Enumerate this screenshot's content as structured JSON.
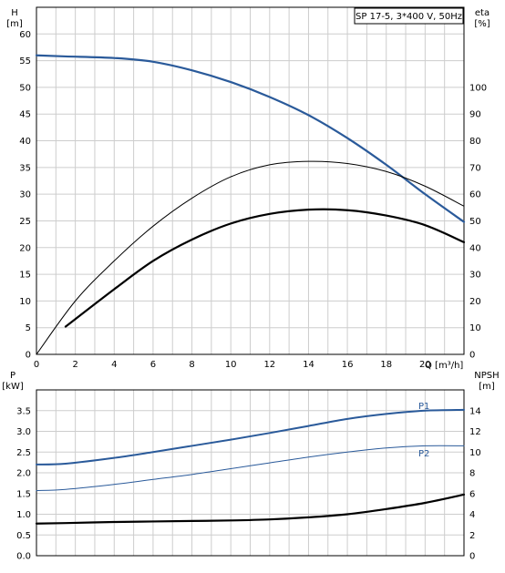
{
  "chart_data": [
    {
      "type": "line",
      "title": "SP 17-5, 3*400 V, 50Hz",
      "xlabel": "Q [m³/h]",
      "ylabel_left_name": "H",
      "ylabel_left_unit": "[m]",
      "ylabel_right_name": "eta",
      "ylabel_right_unit": "[%]",
      "xlim": [
        0,
        22
      ],
      "ylim_left": [
        0,
        65
      ],
      "ylim_right": [
        0,
        130
      ],
      "x_ticks": [
        "0",
        "2",
        "4",
        "6",
        "8",
        "10",
        "12",
        "14",
        "16",
        "18",
        "20"
      ],
      "y_left_ticks": [
        "0",
        "5",
        "10",
        "15",
        "20",
        "25",
        "30",
        "35",
        "40",
        "45",
        "50",
        "55",
        "60"
      ],
      "y_right_ticks": [
        "0",
        "10",
        "20",
        "30",
        "40",
        "50",
        "60",
        "70",
        "80",
        "90",
        "100"
      ],
      "grid": true,
      "series": [
        {
          "axis": "left",
          "color": "#2a5a9a",
          "width": 2.2,
          "x": [
            0,
            1.5,
            4,
            6,
            8,
            10,
            12,
            14,
            16,
            18,
            20,
            22
          ],
          "y": [
            56,
            55.8,
            55.5,
            54.8,
            53.2,
            51,
            48.2,
            44.8,
            40.5,
            35.5,
            30,
            24.8
          ]
        },
        {
          "axis": "right",
          "color": "#000000",
          "width": 1,
          "x": [
            0,
            2,
            4,
            6,
            8,
            10,
            12,
            14,
            16,
            18,
            20,
            22
          ],
          "y": [
            0,
            20,
            35,
            48,
            58.5,
            66.5,
            71,
            72.3,
            71.5,
            68.5,
            63,
            55.5
          ]
        },
        {
          "axis": "left",
          "color": "#000000",
          "width": 2.2,
          "x": [
            1.5,
            4,
            6,
            8,
            10,
            12,
            14,
            16,
            18,
            20,
            22
          ],
          "y": [
            5.2,
            12.2,
            17.5,
            21.5,
            24.5,
            26.3,
            27.1,
            27,
            26,
            24.2,
            21
          ]
        }
      ]
    },
    {
      "type": "line",
      "xlabel": "",
      "ylabel_left_name": "P",
      "ylabel_left_unit": "[kW]",
      "ylabel_right_name": "NPSH",
      "ylabel_right_unit": "[m]",
      "xlim": [
        0,
        22
      ],
      "ylim_left": [
        0,
        4
      ],
      "ylim_right": [
        0,
        16
      ],
      "y_left_ticks": [
        "0.0",
        "0.5",
        "1.0",
        "1.5",
        "2.0",
        "2.5",
        "3.0",
        "3.5"
      ],
      "y_right_ticks": [
        "0",
        "2",
        "4",
        "6",
        "8",
        "10",
        "12",
        "14"
      ],
      "grid": true,
      "series": [
        {
          "name": "P1",
          "axis": "left",
          "color": "#2a5a9a",
          "width": 2,
          "x": [
            0,
            1.5,
            4,
            6,
            8,
            10,
            12,
            14,
            16,
            18,
            20,
            22
          ],
          "y": [
            2.2,
            2.22,
            2.36,
            2.5,
            2.65,
            2.8,
            2.96,
            3.13,
            3.3,
            3.42,
            3.5,
            3.52
          ]
        },
        {
          "name": "P2",
          "axis": "left",
          "color": "#2a5a9a",
          "width": 1,
          "x": [
            0,
            1.5,
            4,
            6,
            8,
            10,
            12,
            14,
            16,
            18,
            20,
            22
          ],
          "y": [
            1.57,
            1.6,
            1.72,
            1.84,
            1.96,
            2.1,
            2.24,
            2.38,
            2.5,
            2.6,
            2.65,
            2.65
          ]
        },
        {
          "axis": "right",
          "color": "#000000",
          "width": 2.2,
          "x": [
            0,
            1.5,
            4,
            6,
            8,
            10,
            12,
            14,
            16,
            18,
            20,
            22
          ],
          "y": [
            3.1,
            3.15,
            3.25,
            3.3,
            3.35,
            3.4,
            3.5,
            3.7,
            4,
            4.5,
            5.1,
            5.9
          ]
        }
      ]
    }
  ]
}
